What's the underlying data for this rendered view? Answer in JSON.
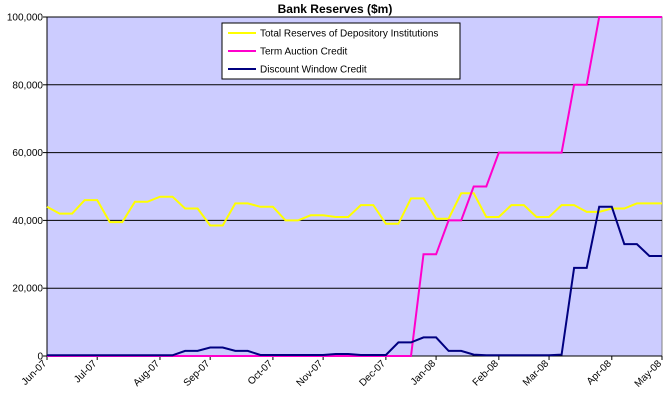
{
  "chart_data": {
    "type": "line",
    "title": "Bank Reserves ($m)",
    "categories": [
      "Jun-07",
      null,
      null,
      null,
      "Jul-07",
      null,
      null,
      null,
      null,
      "Aug-07",
      null,
      null,
      null,
      "Sep-07",
      null,
      null,
      null,
      null,
      "Oct-07",
      null,
      null,
      null,
      "Nov-07",
      null,
      null,
      null,
      null,
      "Dec-07",
      null,
      null,
      null,
      "Jan-08",
      null,
      null,
      null,
      null,
      "Feb-08",
      null,
      null,
      null,
      "Mar-08",
      null,
      null,
      null,
      null,
      "Apr-08",
      null,
      null,
      null,
      "May-08"
    ],
    "series": [
      {
        "name": "Total Reserves of Depository Institutions",
        "color": "#ffff00",
        "values": [
          44000,
          42000,
          42000,
          46000,
          46000,
          39500,
          39500,
          45500,
          45500,
          47000,
          47000,
          43500,
          43500,
          38500,
          38500,
          45000,
          45000,
          44000,
          44000,
          40000,
          40000,
          41500,
          41500,
          41000,
          41000,
          44500,
          44500,
          39000,
          39000,
          46500,
          46500,
          40500,
          40500,
          48000,
          48000,
          41000,
          41000,
          44500,
          44500,
          41000,
          41000,
          44500,
          44500,
          42500,
          42500,
          43500,
          43500,
          45000,
          45000,
          45000
        ]
      },
      {
        "name": "Term Auction Credit",
        "color": "#ff00cc",
        "values": [
          0,
          0,
          0,
          0,
          0,
          0,
          0,
          0,
          0,
          0,
          0,
          0,
          0,
          0,
          0,
          0,
          0,
          0,
          0,
          0,
          0,
          0,
          0,
          0,
          0,
          0,
          0,
          0,
          0,
          0,
          30000,
          30000,
          40000,
          40000,
          50000,
          50000,
          60000,
          60000,
          60000,
          60000,
          60000,
          60000,
          80000,
          80000,
          100000,
          100000,
          100000,
          100000,
          100000,
          100000
        ]
      },
      {
        "name": "Discount Window Credit",
        "color": "#000080",
        "values": [
          200,
          200,
          200,
          200,
          200,
          200,
          200,
          200,
          200,
          200,
          200,
          1500,
          1500,
          2500,
          2500,
          1500,
          1500,
          300,
          300,
          300,
          300,
          300,
          300,
          600,
          600,
          300,
          300,
          300,
          4000,
          4000,
          5500,
          5500,
          1500,
          1500,
          400,
          200,
          200,
          200,
          200,
          200,
          200,
          400,
          26000,
          26000,
          44000,
          44000,
          33000,
          33000,
          29500,
          29500
        ]
      }
    ],
    "ylim": [
      0,
      100000
    ],
    "yticks": [
      0,
      {
        "value": 20000,
        "label": "20,000"
      },
      {
        "value": 40000,
        "label": "40,000"
      },
      {
        "value": 60000,
        "label": "60,000"
      },
      {
        "value": 80000,
        "label": "80,000"
      },
      {
        "value": 100000,
        "label": "100,000"
      }
    ],
    "grid": true,
    "legend": "top",
    "background": "#ccccff"
  }
}
